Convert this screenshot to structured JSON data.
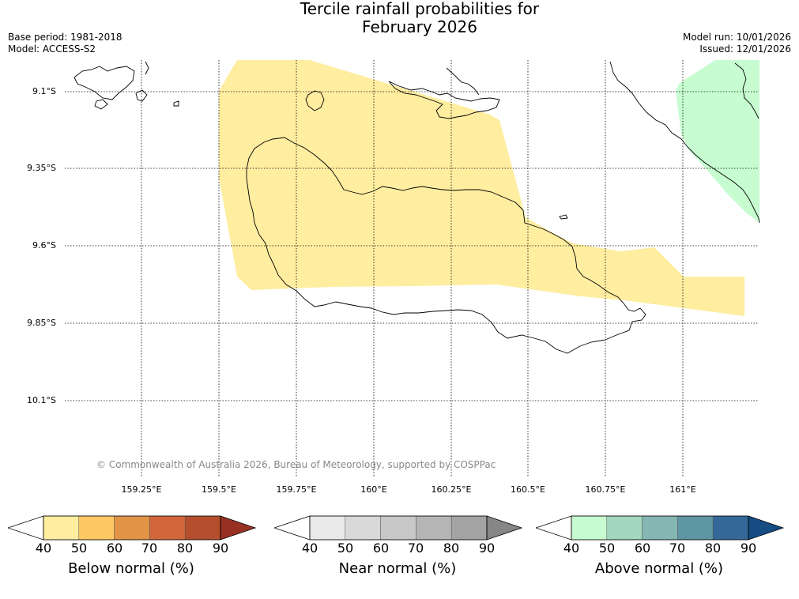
{
  "title_line1": "Tercile rainfall probabilities for",
  "title_line2": "February 2026",
  "base_period": "Base period: 1981-2018",
  "model": "Model: ACCESS-S2",
  "model_run": "Model run: 10/01/2026",
  "issued": "Issued: 12/01/2026",
  "copyright": "© Commonwealth of Australia 2026, Bureau of Meteorology, supported by COSPPac",
  "lat_labels": [
    "9.1°S",
    "9.35°S",
    "9.6°S",
    "9.85°S",
    "10.1°S"
  ],
  "lon_labels": [
    "159.25°E",
    "159.5°E",
    "159.75°E",
    "160°E",
    "160.25°E",
    "160.5°E",
    "160.75°E",
    "161°E"
  ],
  "colors": {
    "below_fill": "#ffeda0",
    "above_fill": "#c7fcd0",
    "below_scale": [
      "#ffeda0",
      "#fec962",
      "#e19346",
      "#d2663a",
      "#b44e2d",
      "#973223"
    ],
    "near_scale": [
      "#e9e9e9",
      "#d9d9d9",
      "#c8c8c8",
      "#b5b5b5",
      "#a3a3a3",
      "#868686"
    ],
    "above_scale": [
      "#c7fcd0",
      "#a4d8be",
      "#84b6b4",
      "#5e96a3",
      "#346898",
      "#154c82"
    ]
  },
  "legends": [
    {
      "name": "below",
      "title": "Below normal (%)",
      "ticks": [
        "40",
        "50",
        "60",
        "70",
        "80",
        "90"
      ]
    },
    {
      "name": "near",
      "title": "Near normal (%)",
      "ticks": [
        "40",
        "50",
        "60",
        "70",
        "80",
        "90"
      ]
    },
    {
      "name": "above",
      "title": "Above normal (%)",
      "ticks": [
        "40",
        "50",
        "60",
        "70",
        "80",
        "90"
      ]
    }
  ]
}
